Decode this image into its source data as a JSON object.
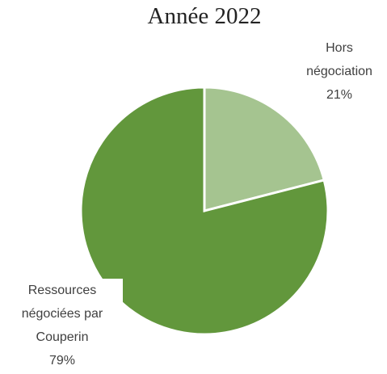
{
  "chart_data": {
    "type": "pie",
    "title": "Année 2022",
    "categories": [
      "Hors négociation",
      "Ressources négociées par Couperin"
    ],
    "values": [
      21,
      79
    ],
    "value_labels": [
      "21%",
      "79%"
    ],
    "colors": [
      "#a5c490",
      "#62973c"
    ]
  }
}
